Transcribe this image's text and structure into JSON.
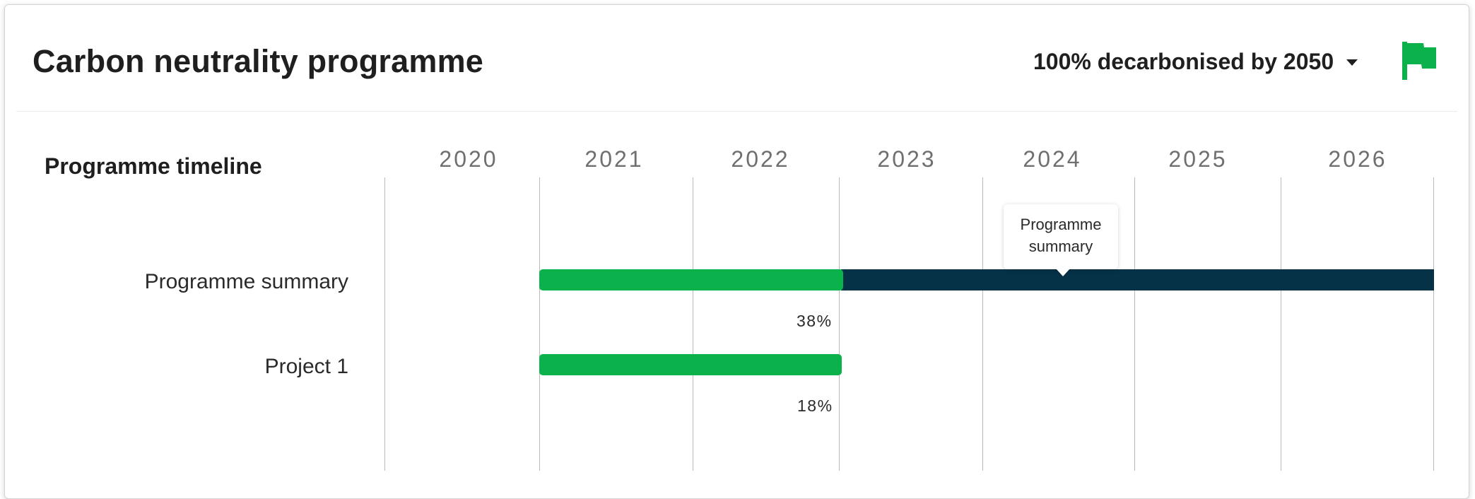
{
  "header": {
    "title": "Carbon neutrality programme",
    "target_select": {
      "selected": "100% decarbonised by 2050"
    },
    "flag_icon": "flag-icon",
    "accent_color": "#0bb14a"
  },
  "timeline": {
    "section_title": "Programme timeline",
    "years": [
      "2020",
      "2021",
      "2022",
      "2023",
      "2024",
      "2025",
      "2026"
    ],
    "rows": [
      {
        "label": "Programme summary",
        "start_year": "2021",
        "end_year": "2026",
        "progress_percent": 38,
        "progress_label": "38%",
        "progress_color": "#0bb14a",
        "remaining_color": "#053247"
      },
      {
        "label": "Project 1",
        "start_year": "2021",
        "end_year": "2023",
        "progress_percent": 18,
        "progress_label": "18%",
        "progress_color": "#0bb14a"
      }
    ],
    "tooltip": {
      "text": "Programme summary"
    }
  }
}
